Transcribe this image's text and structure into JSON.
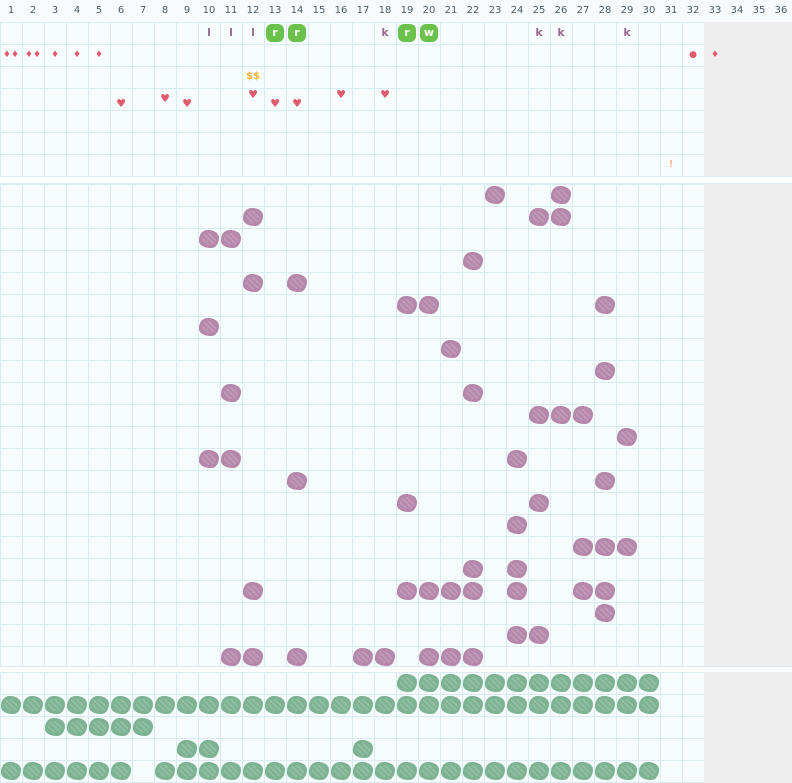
{
  "columns": [
    "1",
    "2",
    "3",
    "4",
    "5",
    "6",
    "7",
    "8",
    "9",
    "10",
    "11",
    "12",
    "13",
    "14",
    "15",
    "16",
    "17",
    "18",
    "19",
    "20",
    "21",
    "22",
    "23",
    "24",
    "25",
    "26",
    "27",
    "28",
    "29",
    "30",
    "31",
    "32",
    "33",
    "34",
    "35",
    "36"
  ],
  "colors": {
    "accent_green": "#6bc24b",
    "blob_purple": "#b487ab",
    "blob_green": "#7db393",
    "heart_red": "#e05a6e",
    "dollar_yellow": "#f3b23a"
  },
  "letter_marks": [
    {
      "col": 10,
      "text": "l"
    },
    {
      "col": 11,
      "text": "l"
    },
    {
      "col": 12,
      "text": "l"
    },
    {
      "col": 18,
      "text": "k"
    },
    {
      "col": 25,
      "text": "k"
    },
    {
      "col": 26,
      "text": "k"
    },
    {
      "col": 29,
      "text": "k"
    }
  ],
  "tags": [
    {
      "col": 13,
      "text": "r"
    },
    {
      "col": 14,
      "text": "r"
    },
    {
      "col": 19,
      "text": "r"
    },
    {
      "col": 20,
      "text": "w"
    }
  ],
  "drop_marks": [
    {
      "col": 1,
      "text": "♦♦"
    },
    {
      "col": 2,
      "text": "♦♦"
    },
    {
      "col": 3,
      "text": "♦"
    },
    {
      "col": 4,
      "text": "♦"
    },
    {
      "col": 5,
      "text": "♦"
    },
    {
      "col": 32,
      "text": "●"
    },
    {
      "col": 33,
      "text": "♦"
    }
  ],
  "dollar_mark": {
    "col": 12,
    "text": "$$"
  },
  "heart_marks": [
    {
      "col": 6,
      "text": "♥"
    },
    {
      "col": 8,
      "text": "♥"
    },
    {
      "col": 9,
      "text": "♥"
    },
    {
      "col": 12,
      "text": "♥"
    },
    {
      "col": 13,
      "text": "♥"
    },
    {
      "col": 14,
      "text": "♥"
    },
    {
      "col": 16,
      "text": "♥"
    },
    {
      "col": 18,
      "text": "♥"
    }
  ],
  "excl_mark": {
    "col": 31,
    "text": "!"
  },
  "purple_cells": [
    [
      1,
      23
    ],
    [
      1,
      26
    ],
    [
      2,
      12
    ],
    [
      2,
      25
    ],
    [
      2,
      26
    ],
    [
      3,
      10
    ],
    [
      3,
      11
    ],
    [
      4,
      22
    ],
    [
      5,
      12
    ],
    [
      5,
      14
    ],
    [
      6,
      19
    ],
    [
      6,
      20
    ],
    [
      6,
      28
    ],
    [
      7,
      10
    ],
    [
      8,
      21
    ],
    [
      9,
      28
    ],
    [
      10,
      11
    ],
    [
      10,
      22
    ],
    [
      11,
      25
    ],
    [
      11,
      26
    ],
    [
      11,
      27
    ],
    [
      12,
      29
    ],
    [
      13,
      10
    ],
    [
      13,
      11
    ],
    [
      13,
      24
    ],
    [
      14,
      14
    ],
    [
      14,
      28
    ],
    [
      15,
      19
    ],
    [
      15,
      25
    ],
    [
      16,
      24
    ],
    [
      17,
      27
    ],
    [
      17,
      28
    ],
    [
      17,
      29
    ],
    [
      18,
      22
    ],
    [
      18,
      24
    ],
    [
      19,
      12
    ],
    [
      19,
      19
    ],
    [
      19,
      20
    ],
    [
      19,
      21
    ],
    [
      19,
      22
    ],
    [
      19,
      24
    ],
    [
      19,
      27
    ],
    [
      19,
      28
    ],
    [
      20,
      28
    ],
    [
      21,
      24
    ],
    [
      21,
      25
    ],
    [
      22,
      11
    ],
    [
      22,
      12
    ],
    [
      22,
      14
    ],
    [
      22,
      17
    ],
    [
      22,
      18
    ],
    [
      22,
      20
    ],
    [
      22,
      21
    ],
    [
      22,
      22
    ]
  ],
  "green_cells": [
    [
      1,
      19
    ],
    [
      1,
      20
    ],
    [
      1,
      21
    ],
    [
      1,
      22
    ],
    [
      1,
      23
    ],
    [
      1,
      24
    ],
    [
      1,
      25
    ],
    [
      1,
      26
    ],
    [
      1,
      27
    ],
    [
      1,
      28
    ],
    [
      1,
      29
    ],
    [
      1,
      30
    ],
    [
      2,
      1
    ],
    [
      2,
      2
    ],
    [
      2,
      3
    ],
    [
      2,
      4
    ],
    [
      2,
      5
    ],
    [
      2,
      6
    ],
    [
      2,
      7
    ],
    [
      2,
      8
    ],
    [
      2,
      9
    ],
    [
      2,
      10
    ],
    [
      2,
      11
    ],
    [
      2,
      12
    ],
    [
      2,
      13
    ],
    [
      2,
      14
    ],
    [
      2,
      15
    ],
    [
      2,
      16
    ],
    [
      2,
      17
    ],
    [
      2,
      18
    ],
    [
      2,
      19
    ],
    [
      2,
      20
    ],
    [
      2,
      21
    ],
    [
      2,
      22
    ],
    [
      2,
      23
    ],
    [
      2,
      24
    ],
    [
      2,
      25
    ],
    [
      2,
      26
    ],
    [
      2,
      27
    ],
    [
      2,
      28
    ],
    [
      2,
      29
    ],
    [
      2,
      30
    ],
    [
      3,
      3
    ],
    [
      3,
      4
    ],
    [
      3,
      5
    ],
    [
      3,
      6
    ],
    [
      3,
      7
    ],
    [
      4,
      9
    ],
    [
      4,
      10
    ],
    [
      4,
      17
    ],
    [
      5,
      1
    ],
    [
      5,
      2
    ],
    [
      5,
      3
    ],
    [
      5,
      4
    ],
    [
      5,
      5
    ],
    [
      5,
      6
    ],
    [
      5,
      8
    ],
    [
      5,
      9
    ],
    [
      5,
      10
    ],
    [
      5,
      11
    ],
    [
      5,
      12
    ],
    [
      5,
      13
    ],
    [
      5,
      14
    ],
    [
      5,
      15
    ],
    [
      5,
      16
    ],
    [
      5,
      17
    ],
    [
      5,
      18
    ],
    [
      5,
      19
    ],
    [
      5,
      20
    ],
    [
      5,
      21
    ],
    [
      5,
      22
    ],
    [
      5,
      23
    ],
    [
      5,
      24
    ],
    [
      5,
      25
    ],
    [
      5,
      26
    ],
    [
      5,
      27
    ],
    [
      5,
      28
    ],
    [
      5,
      29
    ],
    [
      5,
      30
    ]
  ]
}
